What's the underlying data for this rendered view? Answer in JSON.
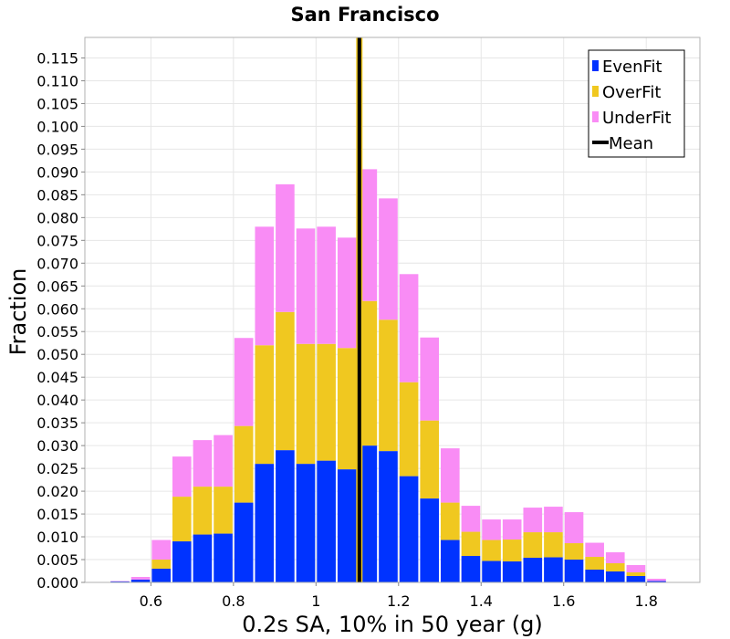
{
  "chart_data": {
    "type": "bar",
    "stacked": true,
    "title": "San Francisco",
    "xlabel": "0.2s SA, 10% in 50 year (g)",
    "ylabel": "Fraction",
    "xlim": [
      0.44,
      1.93
    ],
    "ylim": [
      0,
      0.1195
    ],
    "bin_width": 0.05,
    "x_ticks": [
      0.6,
      0.8,
      1.0,
      1.2,
      1.4,
      1.6,
      1.8
    ],
    "x_tick_labels": [
      "0.6",
      "0.8",
      "1",
      "1.2",
      "1.4",
      "1.6",
      "1.8"
    ],
    "y_ticks": [
      0.0,
      0.005,
      0.01,
      0.015,
      0.02,
      0.025,
      0.03,
      0.035,
      0.04,
      0.045,
      0.05,
      0.055,
      0.06,
      0.065,
      0.07,
      0.075,
      0.08,
      0.085,
      0.09,
      0.095,
      0.1,
      0.105,
      0.11,
      0.115
    ],
    "y_tick_labels": [
      "0.000",
      "0.005",
      "0.010",
      "0.015",
      "0.020",
      "0.025",
      "0.030",
      "0.035",
      "0.040",
      "0.045",
      "0.050",
      "0.055",
      "0.060",
      "0.065",
      "0.070",
      "0.075",
      "0.080",
      "0.085",
      "0.090",
      "0.095",
      "0.100",
      "0.105",
      "0.110",
      "0.115"
    ],
    "bin_centers": [
      0.525,
      0.575,
      0.625,
      0.675,
      0.725,
      0.775,
      0.825,
      0.875,
      0.925,
      0.975,
      1.025,
      1.075,
      1.125,
      1.175,
      1.225,
      1.275,
      1.325,
      1.375,
      1.425,
      1.475,
      1.525,
      1.575,
      1.625,
      1.675,
      1.725,
      1.775,
      1.825,
      1.875
    ],
    "series": [
      {
        "name": "EvenFit",
        "color": "#0033ff",
        "values": [
          0.0002,
          0.0006,
          0.003,
          0.009,
          0.0105,
          0.0107,
          0.0175,
          0.026,
          0.029,
          0.026,
          0.0267,
          0.0248,
          0.03,
          0.0288,
          0.0233,
          0.0184,
          0.0093,
          0.0058,
          0.0047,
          0.0046,
          0.0054,
          0.0055,
          0.005,
          0.0028,
          0.0024,
          0.0014,
          0.0003,
          0.0
        ]
      },
      {
        "name": "OverFit",
        "color": "#f0c820",
        "values": [
          0.0,
          0.0,
          0.002,
          0.0098,
          0.0105,
          0.0103,
          0.0168,
          0.026,
          0.0303,
          0.0263,
          0.0256,
          0.0266,
          0.0317,
          0.0288,
          0.0206,
          0.0171,
          0.0082,
          0.0053,
          0.0046,
          0.0048,
          0.0056,
          0.0055,
          0.0036,
          0.0028,
          0.0018,
          0.0008,
          0.0,
          0.0
        ]
      },
      {
        "name": "UnderFit",
        "color": "#f98cf5",
        "values": [
          0.0001,
          0.0006,
          0.0043,
          0.0088,
          0.0102,
          0.0113,
          0.0193,
          0.026,
          0.028,
          0.0253,
          0.0257,
          0.0242,
          0.0289,
          0.0266,
          0.0237,
          0.0182,
          0.0119,
          0.0057,
          0.0045,
          0.0044,
          0.0054,
          0.0056,
          0.0068,
          0.0031,
          0.0024,
          0.0016,
          0.0005,
          0.0
        ]
      }
    ],
    "mean": {
      "name": "Mean",
      "value": 1.105,
      "color": "#000000"
    },
    "legend": {
      "position": "top-right",
      "entries": [
        "EvenFit",
        "OverFit",
        "UnderFit",
        "Mean"
      ]
    },
    "grid": true
  }
}
